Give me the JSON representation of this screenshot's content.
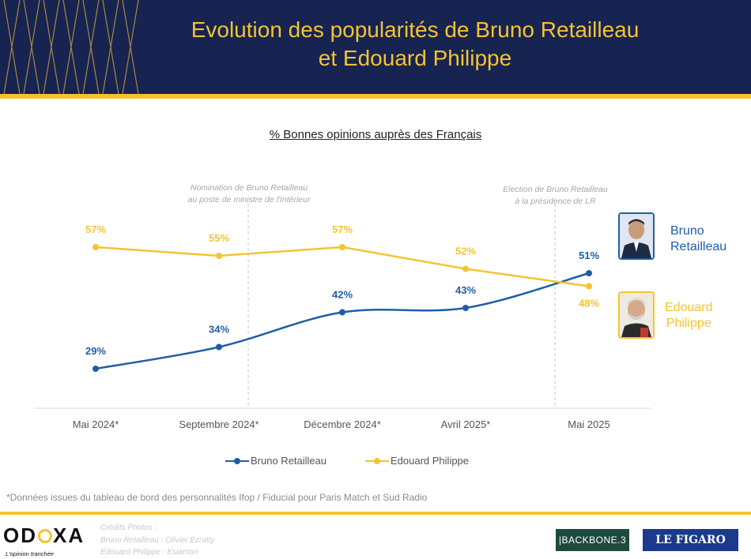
{
  "header": {
    "title_line1": "Evolution des popularités de Bruno Retailleau",
    "title_line2": "et Edouard Philippe"
  },
  "colors": {
    "navy": "#172351",
    "gold": "#f4c430",
    "retailleau": "#1f5ea6",
    "philippe": "#f4c430"
  },
  "chart_data": {
    "type": "line",
    "subtitle": "% Bonnes opinions auprès des Français",
    "categories": [
      "Mai 2024*",
      "Septembre 2024*",
      "Décembre 2024*",
      "Avril 2025*",
      "Mai 2025"
    ],
    "series": [
      {
        "name": "Bruno Retailleau",
        "values": [
          29,
          34,
          42,
          43,
          51
        ],
        "labels": [
          "29%",
          "34%",
          "42%",
          "43%",
          "51%"
        ],
        "color": "#1f5ea6",
        "smooth": true
      },
      {
        "name": "Edouard Philippe",
        "values": [
          57,
          55,
          57,
          52,
          48
        ],
        "labels": [
          "57%",
          "55%",
          "57%",
          "52%",
          "48%"
        ],
        "color": "#f4c430",
        "smooth": false
      }
    ],
    "annotations": [
      {
        "line1": "Nomination de Bruno Retailleau",
        "line2": "au poste de ministre de l'Intérieur",
        "between": [
          "Septembre 2024*",
          "Décembre 2024*"
        ]
      },
      {
        "line1": "Election de Bruno Retailleau",
        "line2": "à la présidence de LR",
        "between": [
          "Avril 2025*",
          "Mai 2025"
        ]
      }
    ],
    "legend_position": "bottom",
    "ylim": [
      20,
      65
    ],
    "grid": false
  },
  "people": {
    "retailleau": {
      "line1": "Bruno",
      "line2": "Retailleau",
      "photo_icon": "portrait-photo"
    },
    "philippe": {
      "line1": "Edouard",
      "line2": "Philippe",
      "photo_icon": "portrait-photo"
    }
  },
  "footnote": "*Données issues du tableau de bord des personnalités Ifop / Fiducial pour Paris Match et Sud Radio",
  "footer": {
    "logo_text_left": "OD",
    "logo_text_right": "XA",
    "tagline": "L'opinion tranchée",
    "credits_line1": "Crédits Photos :",
    "credits_line2": "Bruno Retailleau : Olivier Ezratty",
    "credits_line3": "Edouard Philippe : Ksiamon",
    "partner1": "|BACKBONE.3",
    "partner2": "LE FIGARO"
  }
}
